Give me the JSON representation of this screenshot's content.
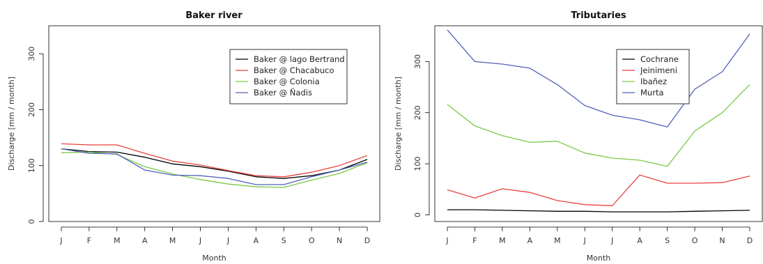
{
  "chart_data": [
    {
      "type": "line",
      "title": "Baker river",
      "xlabel": "Month",
      "ylabel": "Discharge [mm / month]",
      "categories": [
        "J",
        "F",
        "M",
        "A",
        "M",
        "J",
        "J",
        "A",
        "S",
        "O",
        "N",
        "D"
      ],
      "ylim": [
        0,
        350
      ],
      "yticks": [
        0,
        100,
        200,
        300
      ],
      "grid": false,
      "legend_position": "top-right",
      "series": [
        {
          "name": "Baker @ lago Bertrand",
          "color": "#000000",
          "values": [
            130,
            125,
            124,
            115,
            103,
            98,
            90,
            80,
            77,
            82,
            92,
            111
          ]
        },
        {
          "name": "Baker @ Chacabuco",
          "color": "#e8413c",
          "values": [
            139,
            137,
            137,
            122,
            108,
            101,
            91,
            82,
            80,
            88,
            100,
            118
          ]
        },
        {
          "name": "Baker @ Colonia",
          "color": "#7ac943",
          "values": [
            123,
            124,
            120,
            98,
            85,
            75,
            67,
            62,
            61,
            74,
            86,
            105
          ]
        },
        {
          "name": "Baker @ Ñadis",
          "color": "#4f60b8",
          "values": [
            130,
            122,
            121,
            92,
            83,
            82,
            77,
            66,
            66,
            80,
            92,
            106
          ]
        }
      ]
    },
    {
      "type": "line",
      "title": "Tributaries",
      "xlabel": "Month",
      "ylabel": "Discharge [mm / month]",
      "categories": [
        "J",
        "F",
        "M",
        "A",
        "M",
        "J",
        "J",
        "A",
        "S",
        "O",
        "N",
        "D"
      ],
      "ylim": [
        -13,
        370
      ],
      "yticks": [
        0,
        100,
        200,
        300
      ],
      "grid": false,
      "legend_position": "top-center",
      "series": [
        {
          "name": "Cochrane",
          "color": "#000000",
          "values": [
            10,
            10,
            9,
            8,
            7,
            7,
            6,
            6,
            6,
            7,
            8,
            9
          ]
        },
        {
          "name": "Jeinimeni",
          "color": "#e8413c",
          "values": [
            49,
            33,
            51,
            44,
            28,
            20,
            18,
            78,
            62,
            62,
            63,
            76
          ]
        },
        {
          "name": "Ibañez",
          "color": "#7ac943",
          "values": [
            216,
            174,
            155,
            142,
            144,
            121,
            111,
            107,
            95,
            164,
            200,
            255
          ]
        },
        {
          "name": "Murta",
          "color": "#4f60b8",
          "values": [
            362,
            300,
            295,
            287,
            255,
            214,
            195,
            186,
            172,
            246,
            280,
            354
          ]
        }
      ]
    }
  ]
}
